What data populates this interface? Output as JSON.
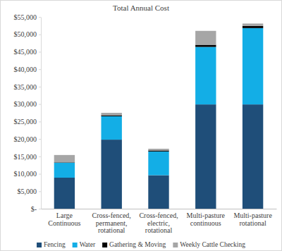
{
  "chart_data": {
    "type": "bar",
    "stacked": true,
    "title": "Total Annual Cost",
    "categories": [
      "Large Continuous",
      "Cross-fenced, permanent, rotational",
      "Cross-fenced, electric, rotational",
      "Multi-pasture continuous",
      "Multi-pasture rotational"
    ],
    "series": [
      {
        "name": "Fencing",
        "color": "#1f4e79",
        "values": [
          8900,
          19800,
          9600,
          29900,
          29900
        ]
      },
      {
        "name": "Water",
        "color": "#13aee6",
        "values": [
          4300,
          6700,
          6800,
          16500,
          21900
        ]
      },
      {
        "name": "Gathering & Moving",
        "color": "#000000",
        "values": [
          100,
          300,
          300,
          600,
          600
        ]
      },
      {
        "name": "Weekly Cattle Checking",
        "color": "#a6a6a6",
        "values": [
          2100,
          700,
          500,
          4000,
          700
        ]
      }
    ],
    "ylim": [
      0,
      55000
    ],
    "yticks": [
      {
        "value": 0,
        "label": "$-"
      },
      {
        "value": 5000,
        "label": "$5,000"
      },
      {
        "value": 10000,
        "label": "$10,000"
      },
      {
        "value": 15000,
        "label": "$15,000"
      },
      {
        "value": 20000,
        "label": "$20,000"
      },
      {
        "value": 25000,
        "label": "$25,000"
      },
      {
        "value": 30000,
        "label": "$30,000"
      },
      {
        "value": 35000,
        "label": "$35,000"
      },
      {
        "value": 40000,
        "label": "$40,000"
      },
      {
        "value": 45000,
        "label": "$45,000"
      },
      {
        "value": 50000,
        "label": "$50,000"
      },
      {
        "value": 55000,
        "label": "$55,000"
      }
    ],
    "grid": false,
    "legend": "bottom"
  }
}
